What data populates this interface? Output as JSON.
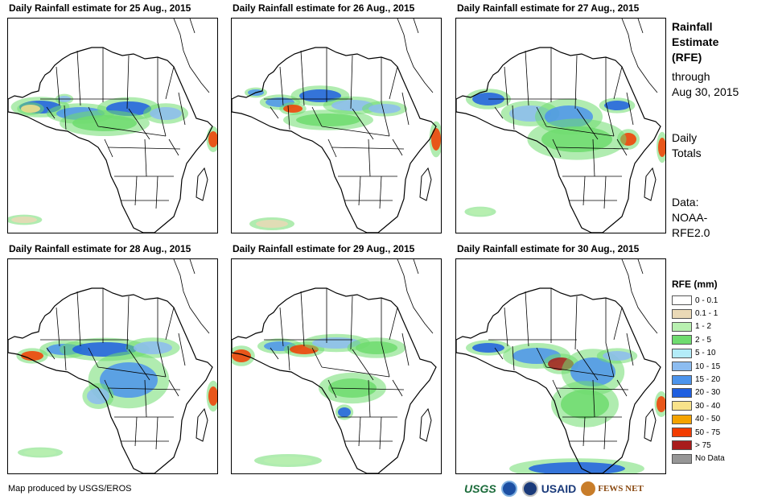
{
  "panels": [
    {
      "title": "Daily Rainfall estimate for 25 Aug., 2015"
    },
    {
      "title": "Daily Rainfall estimate for 26 Aug., 2015"
    },
    {
      "title": "Daily Rainfall estimate for 27 Aug., 2015"
    },
    {
      "title": "Daily Rainfall estimate for 28 Aug., 2015"
    },
    {
      "title": "Daily Rainfall estimate for 29 Aug., 2015"
    },
    {
      "title": "Daily Rainfall estimate for 30 Aug., 2015"
    }
  ],
  "sidebar": {
    "title_lines": [
      "Rainfall",
      "Estimate",
      "(RFE)"
    ],
    "through_lines": [
      "through",
      "Aug 30, 2015"
    ],
    "totals_lines": [
      "Daily",
      "Totals"
    ],
    "data_lines": [
      "Data:",
      "NOAA-",
      "RFE2.0"
    ]
  },
  "legend": {
    "title": "RFE (mm)",
    "items": [
      {
        "label": "0 - 0.1",
        "color": "#ffffff"
      },
      {
        "label": "0.1 - 1",
        "color": "#ead9b6"
      },
      {
        "label": "1 - 2",
        "color": "#b8f0b0"
      },
      {
        "label": "2 - 5",
        "color": "#6fdc6f"
      },
      {
        "label": "5 - 10",
        "color": "#b3ecf8"
      },
      {
        "label": "10 - 15",
        "color": "#8cbcf0"
      },
      {
        "label": "15 - 20",
        "color": "#4c94ec"
      },
      {
        "label": "20 - 30",
        "color": "#1f5fe0"
      },
      {
        "label": "30 - 40",
        "color": "#f8e28a"
      },
      {
        "label": "40 - 50",
        "color": "#f4a300"
      },
      {
        "label": "50 - 75",
        "color": "#f23c00"
      },
      {
        "label": "> 75",
        "color": "#a81c1c"
      },
      {
        "label": "No Data",
        "color": "#969696"
      }
    ]
  },
  "footer": {
    "credit": "Map produced by USGS/EROS",
    "logos": [
      "USGS",
      "NOAA",
      "USAID",
      "FEWS NET"
    ]
  }
}
